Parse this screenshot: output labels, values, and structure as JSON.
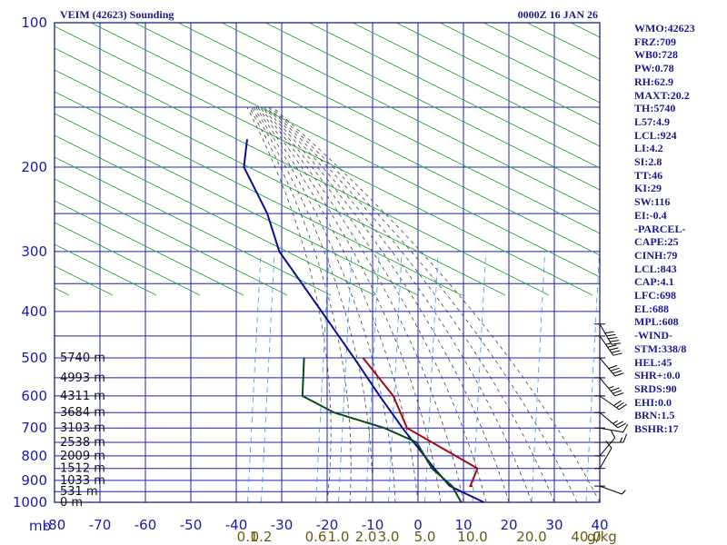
{
  "header": {
    "station": "VEIM (42623) Sounding",
    "time": "0000Z 16 JAN 26"
  },
  "indices": [
    "WMO:42623",
    "FRZ:709",
    "WB0:728",
    "PW:0.78",
    "RH:62.9",
    "MAXT:20.2",
    "TH:5740",
    "L57:4.9",
    "LCL:924",
    "LI:4.2",
    "SI:2.8",
    "TT:46",
    "KI:29",
    "SW:116",
    "EI:-0.4",
    "-PARCEL-",
    "CAPE:25",
    "CINH:79",
    "LCL:843",
    "CAP:4.1",
    "LFC:698",
    "EL:688",
    "MPL:608",
    "-WIND-",
    "STM:338/8",
    "HEL:45",
    "SHR+:0.0",
    "SRDS:90",
    "EHI:0.0",
    "BRN:1.5",
    "BSHR:17"
  ],
  "chart_data": {
    "type": "line",
    "chart_kind": "skew-T log-P sounding",
    "y_axis": {
      "scale": "log",
      "unit_label": "mb",
      "range": [
        1000,
        100
      ],
      "ticks": [
        "100",
        "200",
        "300",
        "400",
        "500",
        "600",
        "700",
        "800",
        "900",
        "1000"
      ]
    },
    "x_axis": {
      "range": [
        -80,
        40
      ],
      "ticks": [
        "-80",
        "-70",
        "-60",
        "-50",
        "-40",
        "-30",
        "-20",
        "-10",
        "0",
        "10",
        "20",
        "30",
        "40"
      ]
    },
    "mixing_ratio_ticks": [
      {
        "label": "0.1",
        "x": -37.5
      },
      {
        "label": "0.2",
        "x": -34.5
      },
      {
        "label": "0.6",
        "x": -22.5
      },
      {
        "label": "1.0",
        "x": -17.5
      },
      {
        "label": "2.0",
        "x": -11.5
      },
      {
        "label": "3.0",
        "x": -6.5
      },
      {
        "label": "5.0",
        "x": 1.5
      },
      {
        "label": "10.0",
        "x": 12
      },
      {
        "label": "20.0",
        "x": 25
      },
      {
        "label": "40.0",
        "x": 37
      }
    ],
    "mixing_unit": "g/kg",
    "heights": [
      {
        "label": "5740 m",
        "p": 500
      },
      {
        "label": "4993 m",
        "p": 550
      },
      {
        "label": "4311 m",
        "p": 600
      },
      {
        "label": "3684 m",
        "p": 650
      },
      {
        "label": "3103 m",
        "p": 700
      },
      {
        "label": "2538 m",
        "p": 750
      },
      {
        "label": "2009 m",
        "p": 800
      },
      {
        "label": "1512 m",
        "p": 850
      },
      {
        "label": "1033 m",
        "p": 900
      },
      {
        "label": "531 m",
        "p": 950
      },
      {
        "label": "0 m",
        "p": 1000
      }
    ],
    "series": [
      {
        "color": "#0c0c9a",
        "points": [
          [
            1000,
            14.5
          ],
          [
            925,
            6
          ],
          [
            850,
            1.5
          ],
          [
            700,
            -8
          ],
          [
            600,
            -15
          ],
          [
            500,
            -23
          ],
          [
            400,
            -33
          ],
          [
            300,
            -46
          ],
          [
            250,
            -51
          ],
          [
            200,
            -59
          ],
          [
            175,
            -60
          ]
        ]
      },
      {
        "color": "#0a4a14",
        "points": [
          [
            1000,
            9.5
          ],
          [
            925,
            6.5
          ],
          [
            850,
            1
          ],
          [
            750,
            -4
          ],
          [
            700,
            -12
          ],
          [
            650,
            -24
          ],
          [
            600,
            -32
          ],
          [
            500,
            -34
          ]
        ]
      },
      {
        "color": "#a00a0a",
        "points": [
          [
            925,
            11
          ],
          [
            925,
            10.5
          ],
          [
            850,
            11
          ],
          [
            700,
            -7
          ],
          [
            600,
            -12
          ],
          [
            500,
            -21
          ]
        ]
      }
    ],
    "wind_barbs": [
      {
        "p": 925,
        "dir": 290,
        "spd": 5
      },
      {
        "p": 850,
        "dir": 210,
        "spd": 10
      },
      {
        "p": 800,
        "dir": 220,
        "spd": 10
      },
      {
        "p": 750,
        "dir": 270,
        "spd": 15
      },
      {
        "p": 700,
        "dir": 280,
        "spd": 10
      },
      {
        "p": 650,
        "dir": 310,
        "spd": 25
      },
      {
        "p": 600,
        "dir": 305,
        "spd": 30
      },
      {
        "p": 550,
        "dir": 320,
        "spd": 35
      },
      {
        "p": 500,
        "dir": 320,
        "spd": 40
      },
      {
        "p": 450,
        "dir": 325,
        "spd": 45
      },
      {
        "p": 425,
        "dir": 330,
        "spd": 50
      }
    ],
    "grid": true
  }
}
